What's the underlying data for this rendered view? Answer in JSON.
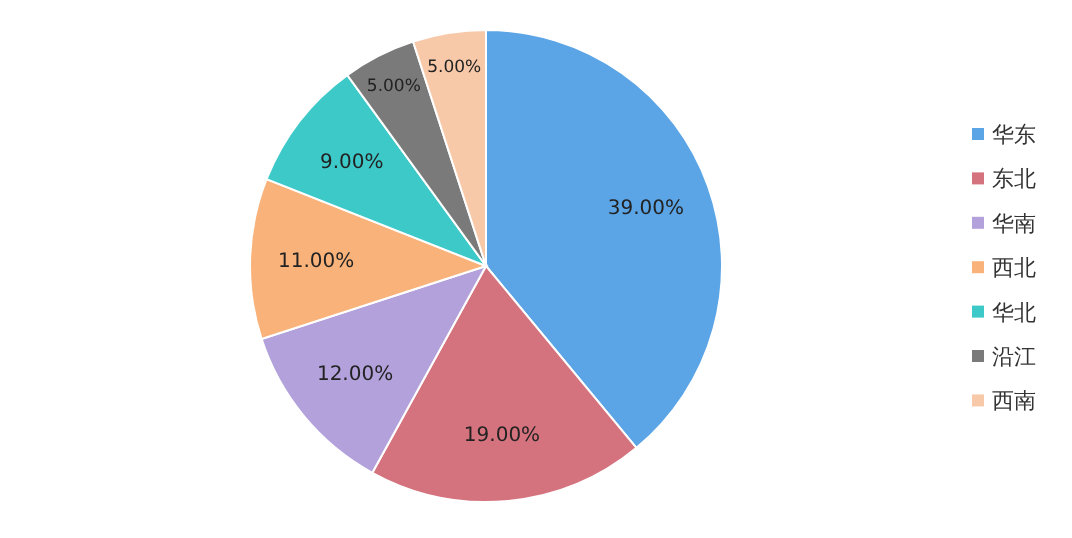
{
  "chart_data": {
    "type": "pie",
    "categories": [
      "华东",
      "东北",
      "华南",
      "西北",
      "华北",
      "沿江",
      "西南"
    ],
    "values": [
      39,
      19,
      12,
      11,
      9,
      5,
      5
    ],
    "value_labels": [
      "39.00%",
      "19.00%",
      "12.00%",
      "11.00%",
      "9.00%",
      "5.00%",
      "5.00%"
    ],
    "colors": [
      "#5ba4e5",
      "#d4737d",
      "#b3a1dc",
      "#f9b27a",
      "#3ec9c9",
      "#7a7a7a",
      "#f8c9a9"
    ],
    "legend": "right"
  }
}
